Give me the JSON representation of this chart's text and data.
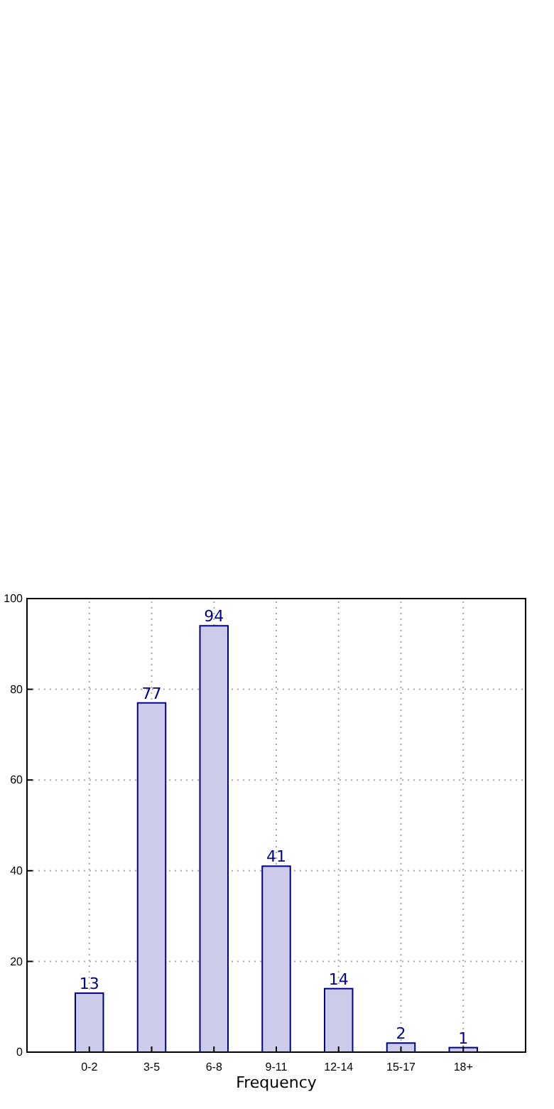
{
  "chart_data": {
    "type": "bar",
    "xlabel": "Frequency",
    "categories": [
      "0-2",
      "3-5",
      "6-8",
      "9-11",
      "12-14",
      "15-17",
      "18+"
    ],
    "values": [
      13,
      77,
      94,
      41,
      14,
      2,
      1
    ],
    "color": "#ccccea",
    "ylim": [
      0,
      100
    ],
    "yticks": [
      0,
      20,
      40,
      60,
      80,
      100
    ],
    "grid": true,
    "data_labels": true
  }
}
